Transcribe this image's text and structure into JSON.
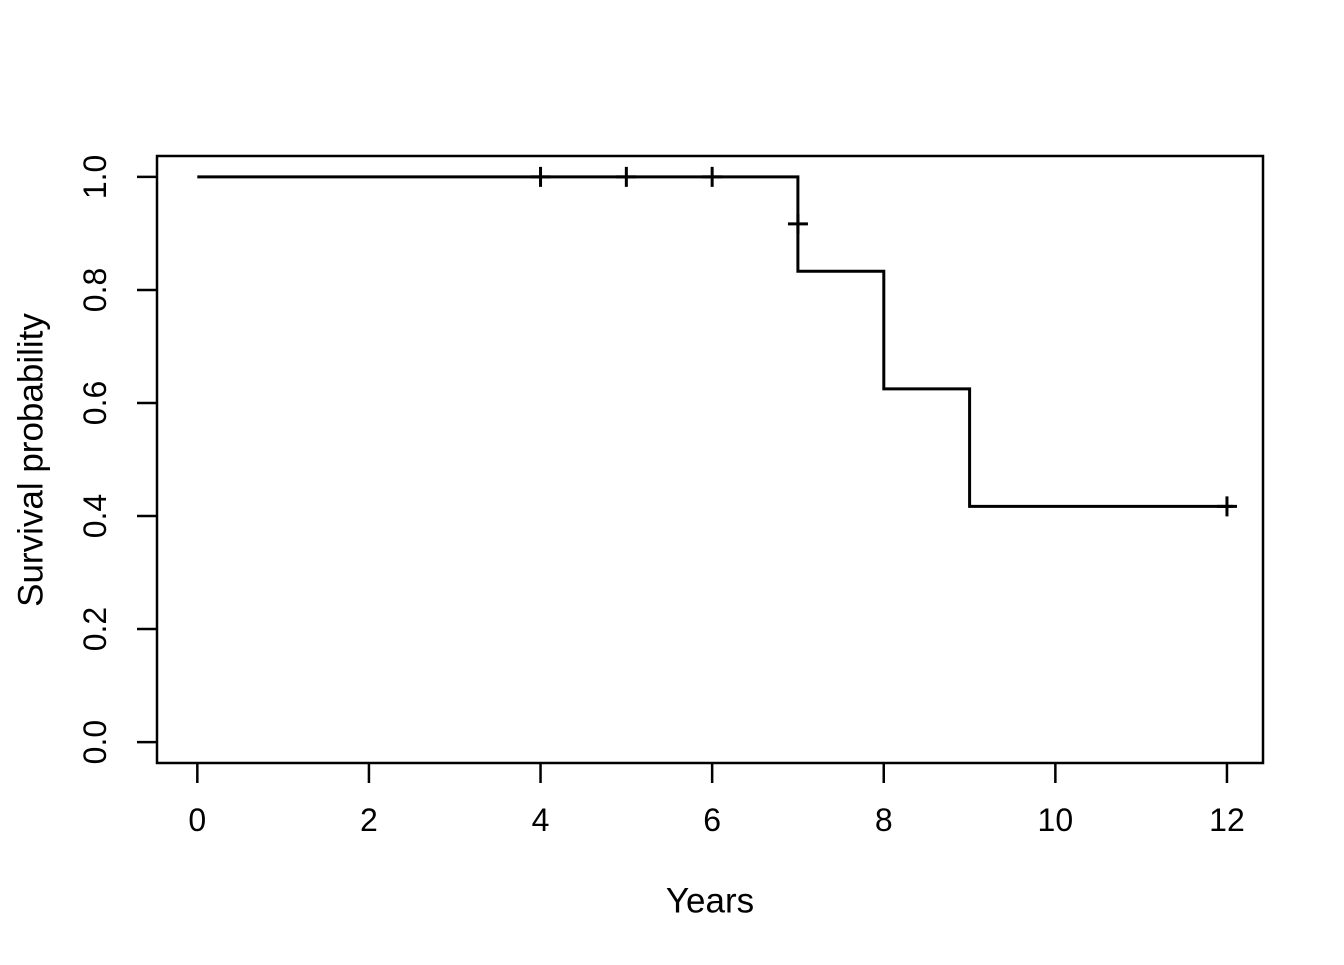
{
  "figure": {
    "background": "#ffffff",
    "foreground": "#000000"
  },
  "chart_data": {
    "type": "line",
    "subtype": "kaplan-meier-step-curve",
    "title": "",
    "xlabel": "Years",
    "ylabel": "Survival probability",
    "grid": false,
    "legend": null,
    "xlim": [
      -0.47,
      12.42
    ],
    "ylim": [
      -0.037,
      1.037
    ],
    "x_ticks": {
      "values": [
        0,
        2,
        4,
        6,
        8,
        10,
        12
      ],
      "labels": [
        "0",
        "2",
        "4",
        "6",
        "8",
        "10",
        "12"
      ]
    },
    "y_ticks": {
      "values": [
        0.0,
        0.2,
        0.4,
        0.6,
        0.8,
        1.0
      ],
      "labels": [
        "0.0",
        "0.2",
        "0.4",
        "0.6",
        "0.8",
        "1.0"
      ]
    },
    "series": [
      {
        "name": "survival-curve",
        "color": "#000000",
        "step_points": [
          [
            0,
            1.0
          ],
          [
            7,
            1.0
          ],
          [
            7,
            0.833
          ],
          [
            8,
            0.833
          ],
          [
            8,
            0.625
          ],
          [
            9,
            0.625
          ],
          [
            9,
            0.417
          ],
          [
            12.07,
            0.417
          ]
        ],
        "censor_marks": [
          [
            4,
            1.0
          ],
          [
            5,
            1.0
          ],
          [
            6,
            1.0
          ],
          [
            7,
            0.917
          ],
          [
            12,
            0.417
          ]
        ]
      }
    ]
  }
}
